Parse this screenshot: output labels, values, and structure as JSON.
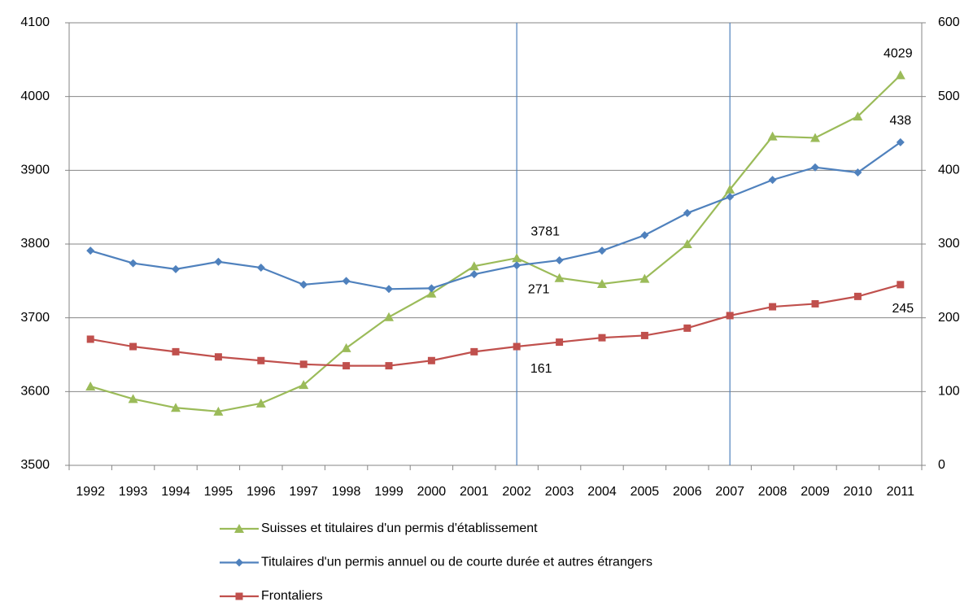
{
  "chart_data": {
    "type": "line",
    "categories": [
      "1992",
      "1993",
      "1994",
      "1995",
      "1996",
      "1997",
      "1998",
      "1999",
      "2000",
      "2001",
      "2002",
      "2003",
      "2004",
      "2005",
      "2006",
      "2007",
      "2008",
      "2009",
      "2010",
      "2011"
    ],
    "ylim": [
      3500,
      4100
    ],
    "yticks": [
      3500,
      3600,
      3700,
      3800,
      3900,
      4000,
      4100
    ],
    "y2lim": [
      0,
      600
    ],
    "y2ticks": [
      0,
      100,
      200,
      300,
      400,
      500,
      600
    ],
    "grid": true,
    "legend": "bottom",
    "reference_lines": [
      "2002",
      "2007"
    ],
    "reference_line_color": "#4f81bd",
    "series": [
      {
        "name": "Suisses et titulaires d'un permis d'établissement",
        "color": "#9bbb59",
        "marker": "triangle",
        "axis": "y",
        "values": [
          3607,
          3590,
          3578,
          3573,
          3584,
          3609,
          3659,
          3701,
          3733,
          3770,
          3781,
          3754,
          3746,
          3753,
          3800,
          3874,
          3946,
          3944,
          3973,
          4029
        ],
        "value_labels": [
          null,
          null,
          null,
          null,
          null,
          null,
          null,
          null,
          null,
          null,
          "3781",
          null,
          null,
          null,
          null,
          null,
          null,
          null,
          null,
          "4029"
        ]
      },
      {
        "name": "Titulaires d'un permis annuel ou de courte durée et autres étrangers",
        "color": "#4f81bd",
        "marker": "diamond",
        "axis": "y2",
        "values": [
          291,
          274,
          266,
          276,
          268,
          245,
          250,
          239,
          240,
          259,
          271,
          278,
          291,
          312,
          342,
          364,
          387,
          404,
          397,
          438
        ],
        "value_labels": [
          null,
          null,
          null,
          null,
          null,
          null,
          null,
          null,
          null,
          null,
          "271",
          null,
          null,
          null,
          null,
          null,
          null,
          null,
          null,
          "438"
        ]
      },
      {
        "name": "Frontaliers",
        "color": "#c0504d",
        "marker": "square",
        "axis": "y2",
        "values": [
          171,
          161,
          154,
          147,
          142,
          137,
          135,
          135,
          142,
          154,
          161,
          167,
          173,
          176,
          186,
          203,
          215,
          219,
          229,
          245
        ],
        "value_labels": [
          null,
          null,
          null,
          null,
          null,
          null,
          null,
          null,
          null,
          null,
          "161",
          null,
          null,
          null,
          null,
          null,
          null,
          null,
          null,
          "245"
        ]
      }
    ]
  }
}
